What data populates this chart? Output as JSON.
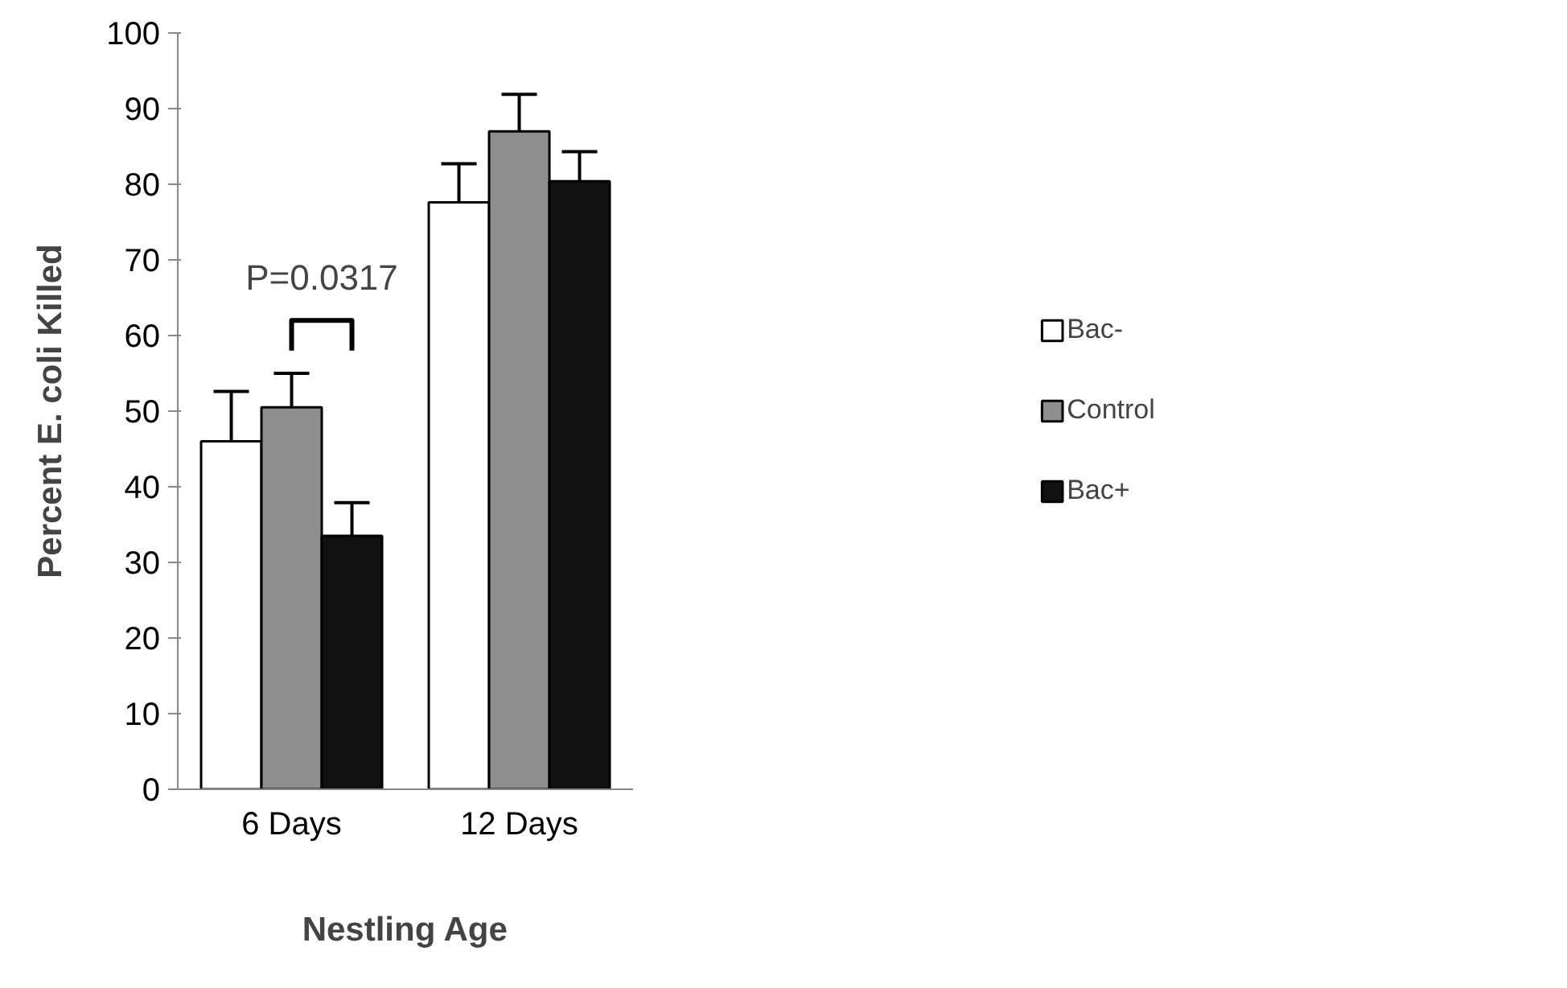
{
  "chart_data": {
    "type": "bar",
    "xlabel": "Nestling Age",
    "ylabel": "Percent E. coli Killed",
    "categories": [
      "6 Days",
      "12 Days"
    ],
    "series": [
      {
        "name": "Bac-",
        "color": "#ffffff",
        "values": [
          46.0,
          77.6
        ],
        "errors": [
          6.6,
          5.1
        ]
      },
      {
        "name": "Control",
        "color": "#8e8e8e",
        "values": [
          50.5,
          87.0
        ],
        "errors": [
          4.5,
          4.9
        ]
      },
      {
        "name": "Bac+",
        "color": "#111111",
        "values": [
          33.5,
          80.4
        ],
        "errors": [
          4.4,
          3.9
        ]
      }
    ],
    "ylim": [
      0,
      100
    ],
    "yticks": [
      0,
      10,
      20,
      30,
      40,
      50,
      60,
      70,
      80,
      90,
      100
    ],
    "grid": false,
    "legend": "right",
    "annotations": [
      "P=0.0317"
    ]
  }
}
